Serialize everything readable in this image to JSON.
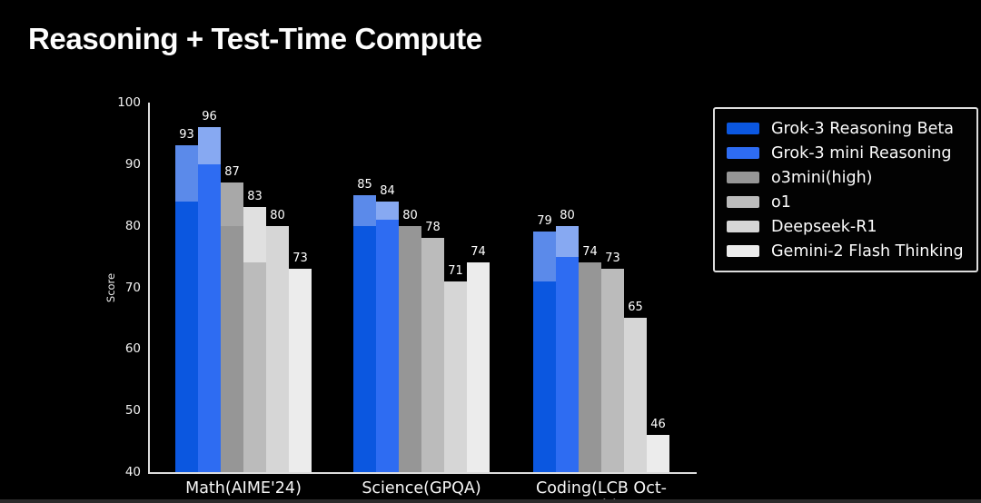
{
  "title": "Reasoning + Test-Time Compute",
  "chart_data": {
    "type": "bar",
    "title": "Reasoning + Test-Time Compute",
    "xlabel": "",
    "ylabel": "Score",
    "ylim": [
      40,
      100
    ],
    "yticks": [
      100,
      90,
      80,
      70,
      60,
      50,
      40
    ],
    "grid": false,
    "legend_position": "upper right",
    "background_color": "#000000",
    "axis_color": "#dcdcdc",
    "value_label_color": "#ffffff",
    "categories": [
      "Math(AIME'24)",
      "Science(GPQA)",
      "Coding(LCB Oct-Feb)"
    ],
    "series": [
      {
        "name": "Grok-3 Reasoning Beta",
        "color": "#0b57e0",
        "light_color": "#5b8aea",
        "values": [
          93,
          85,
          79
        ],
        "solid_to": [
          84,
          80,
          71
        ]
      },
      {
        "name": "Grok-3 mini Reasoning",
        "color": "#2e6cf2",
        "light_color": "#87a9f2",
        "values": [
          96,
          84,
          80
        ],
        "solid_to": [
          90,
          81,
          75
        ]
      },
      {
        "name": "o3mini(high)",
        "color": "#969696",
        "light_color": "#a8a8a8",
        "values": [
          87,
          80,
          74
        ],
        "solid_to": [
          80,
          null,
          null
        ]
      },
      {
        "name": "o1",
        "color": "#bbbbbb",
        "light_color": "#e0e0e0",
        "values": [
          83,
          78,
          73
        ],
        "solid_to": [
          74,
          null,
          null
        ]
      },
      {
        "name": "Deepseek-R1",
        "color": "#d6d6d6",
        "light_color": null,
        "values": [
          80,
          71,
          65
        ],
        "solid_to": [
          null,
          null,
          null
        ]
      },
      {
        "name": "Gemini-2 Flash Thinking",
        "color": "#ececec",
        "light_color": null,
        "values": [
          73,
          74,
          46
        ],
        "solid_to": [
          null,
          null,
          null
        ]
      }
    ]
  }
}
